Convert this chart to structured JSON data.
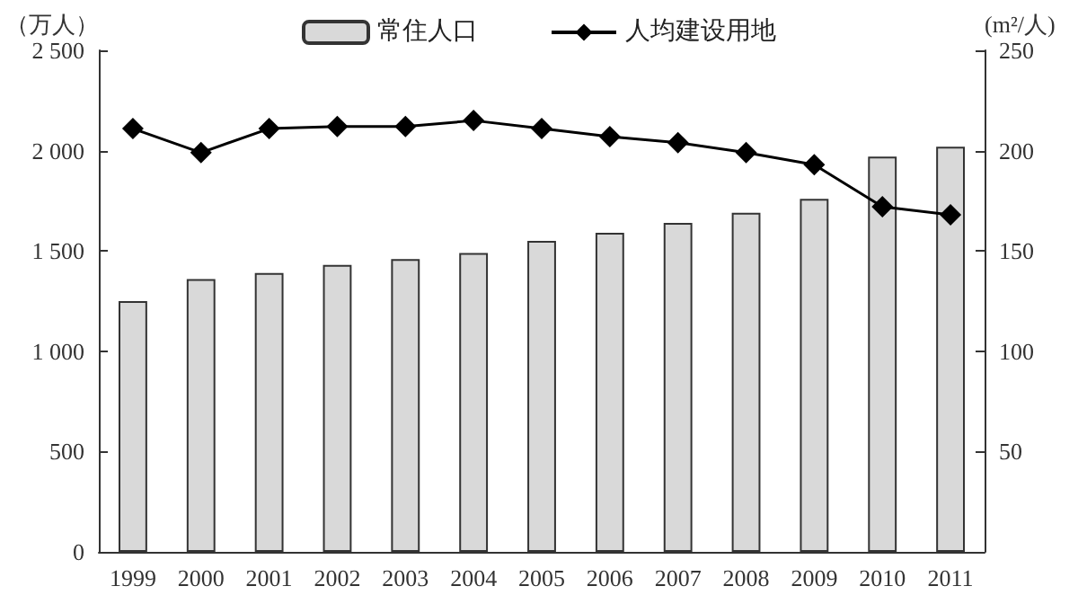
{
  "chart_data": {
    "type": "bar",
    "ylabel": "（万人）",
    "y2label": "(m²/人)",
    "categories": [
      "1999",
      "2000",
      "2001",
      "2002",
      "2003",
      "2004",
      "2005",
      "2006",
      "2007",
      "2008",
      "2009",
      "2010",
      "2011"
    ],
    "series": [
      {
        "name": "常住人口",
        "color": "#d9d9d9",
        "values": [
          1250,
          1360,
          1390,
          1430,
          1460,
          1490,
          1550,
          1590,
          1640,
          1690,
          1760,
          1970,
          2020
        ]
      },
      {
        "name": "人均建设用地",
        "type": "line",
        "axis": "y2",
        "color": "#000000",
        "marker": "diamond",
        "values": [
          211,
          199,
          211,
          212,
          212,
          215,
          211,
          207,
          204,
          199,
          193,
          172,
          168
        ]
      }
    ],
    "ylim": [
      0,
      2500
    ],
    "yticks": [
      0,
      {
        "value": 500,
        "label": "500"
      },
      {
        "value": 1000,
        "label": "1 000"
      },
      {
        "value": 1500,
        "label": "1 500"
      },
      {
        "value": 2000,
        "label": "2 000"
      },
      {
        "value": 2500,
        "label": "2 500"
      }
    ],
    "y2lim": [
      0,
      250
    ],
    "y2ticks": [
      50,
      100,
      150,
      200,
      250
    ],
    "legend": "top",
    "grid": false
  }
}
